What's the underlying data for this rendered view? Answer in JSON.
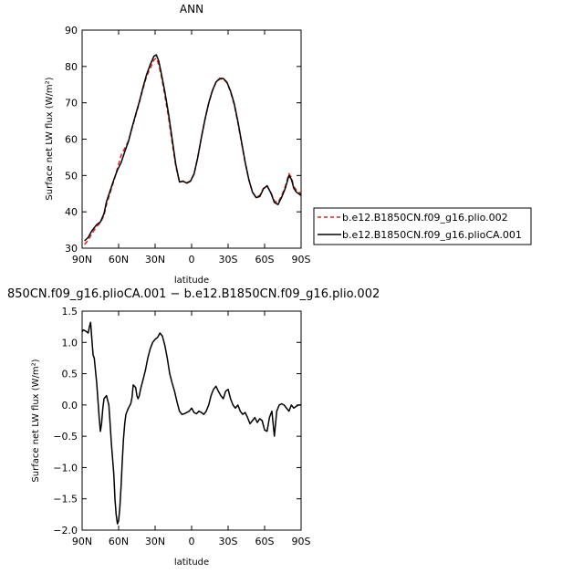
{
  "chart_data": [
    {
      "type": "line",
      "title": "ANN",
      "xlabel": "latitude",
      "ylabel": "Surface net LW flux (W/m²)",
      "xlim": [
        90,
        -90
      ],
      "ylim": [
        30,
        90
      ],
      "xtick_values": [
        90,
        60,
        30,
        0,
        -30,
        -60,
        -90
      ],
      "xtick_labels": [
        "90N",
        "60N",
        "30N",
        "0",
        "30S",
        "60S",
        "90S"
      ],
      "ytick_values": [
        30,
        40,
        50,
        60,
        70,
        80,
        90
      ],
      "ytick_labels": [
        "30",
        "40",
        "50",
        "60",
        "70",
        "80",
        "90"
      ],
      "grid": false,
      "legend_position": "right",
      "series": [
        {
          "name": "b.e12.B1850CN.f09_g16.plio.002",
          "color": "#dd2222",
          "dash": "dashed",
          "x": [
            88,
            85,
            82,
            78,
            75,
            72,
            70,
            67,
            64,
            61,
            58,
            55,
            52,
            49,
            46,
            43,
            40,
            37,
            34,
            31,
            29,
            27,
            25,
            22,
            19,
            16,
            13,
            10,
            7,
            4,
            1,
            -2,
            -5,
            -8,
            -11,
            -14,
            -17,
            -20,
            -23,
            -26,
            -29,
            -32,
            -35,
            -38,
            -41,
            -44,
            -47,
            -50,
            -53,
            -56,
            -59,
            -62,
            -65,
            -68,
            -71,
            -74,
            -77,
            -80,
            -82,
            -84,
            -86,
            -88,
            -90
          ],
          "y": [
            31.0,
            32.2,
            34.0,
            36.0,
            37.0,
            39.0,
            42.0,
            45.2,
            48.5,
            52.0,
            55.5,
            57.5,
            59.5,
            63.0,
            66.5,
            70.0,
            73.8,
            77.3,
            79.5,
            81.8,
            82.3,
            80.5,
            77.5,
            72.0,
            66.0,
            59.0,
            52.5,
            48.2,
            48.5,
            48.0,
            48.5,
            50.5,
            55.0,
            60.5,
            65.5,
            69.8,
            73.2,
            75.6,
            76.5,
            76.6,
            75.5,
            73.0,
            69.5,
            64.5,
            59.0,
            53.5,
            48.8,
            45.5,
            44.0,
            44.5,
            46.5,
            47.0,
            45.5,
            43.0,
            42.5,
            44.5,
            47.0,
            50.5,
            49.5,
            47.0,
            46.0,
            45.5,
            45.0
          ]
        },
        {
          "name": "b.e12.B1850CN.f09_g16.plioCA.001",
          "color": "#000000",
          "dash": "solid",
          "x": [
            88,
            85,
            82,
            78,
            75,
            72,
            70,
            67,
            64,
            61,
            58,
            55,
            52,
            49,
            46,
            43,
            40,
            37,
            34,
            31,
            29,
            27,
            25,
            22,
            19,
            16,
            13,
            10,
            7,
            4,
            1,
            -2,
            -5,
            -8,
            -11,
            -14,
            -17,
            -20,
            -23,
            -26,
            -29,
            -32,
            -35,
            -38,
            -41,
            -44,
            -47,
            -50,
            -53,
            -56,
            -59,
            -62,
            -65,
            -68,
            -71,
            -74,
            -77,
            -80,
            -82,
            -84,
            -86,
            -88,
            -90
          ],
          "y": [
            32.0,
            33.0,
            34.8,
            36.5,
            37.2,
            39.5,
            42.8,
            45.8,
            48.8,
            51.5,
            53.5,
            56.5,
            59.3,
            63.2,
            66.8,
            70.3,
            74.2,
            77.8,
            80.5,
            82.8,
            83.2,
            81.5,
            78.2,
            73.0,
            67.0,
            60.0,
            53.0,
            48.2,
            48.4,
            47.9,
            48.4,
            50.4,
            54.9,
            60.4,
            65.5,
            69.9,
            73.3,
            75.7,
            76.7,
            76.7,
            75.7,
            73.2,
            69.8,
            64.9,
            59.3,
            53.7,
            48.9,
            45.4,
            43.9,
            44.2,
            46.3,
            47.2,
            45.3,
            42.6,
            42.0,
            44.0,
            46.5,
            50.0,
            49.0,
            46.5,
            45.5,
            45.0,
            44.5
          ]
        }
      ]
    },
    {
      "type": "line",
      "title": "850CN.f09_g16.plioCA.001 − b.e12.B1850CN.f09_g16.plio.002",
      "xlabel": "latitude",
      "ylabel": "Surface net LW flux (W/m²)",
      "xlim": [
        90,
        -90
      ],
      "ylim": [
        -2.0,
        1.5
      ],
      "xtick_values": [
        90,
        60,
        30,
        0,
        -30,
        -60,
        -90
      ],
      "xtick_labels": [
        "90N",
        "60N",
        "30N",
        "0",
        "30S",
        "60S",
        "90S"
      ],
      "ytick_values": [
        -2.0,
        -1.5,
        -1.0,
        -0.5,
        0.0,
        0.5,
        1.0,
        1.5
      ],
      "ytick_labels": [
        "−2.0",
        "−1.5",
        "−1.0",
        "−0.5",
        "0.0",
        "0.5",
        "1.0",
        "1.5"
      ],
      "grid": false,
      "series": [
        {
          "color": "#000000",
          "dash": "solid",
          "x": [
            90,
            89,
            87,
            85,
            84,
            83,
            82,
            81,
            80,
            78,
            76,
            75,
            74,
            73,
            72,
            70,
            68,
            67,
            66,
            64,
            63,
            62,
            61,
            60,
            59,
            58,
            57,
            56,
            55,
            54,
            52,
            50,
            49,
            48,
            46,
            45,
            44,
            43,
            42,
            40,
            38,
            36,
            34,
            32,
            30,
            28,
            26,
            24,
            22,
            20,
            18,
            16,
            14,
            12,
            10,
            8,
            6,
            4,
            2,
            0,
            -2,
            -4,
            -6,
            -8,
            -10,
            -12,
            -14,
            -16,
            -18,
            -20,
            -22,
            -24,
            -26,
            -28,
            -30,
            -32,
            -34,
            -36,
            -38,
            -40,
            -42,
            -44,
            -46,
            -48,
            -50,
            -52,
            -54,
            -56,
            -58,
            -60,
            -62,
            -64,
            -66,
            -68,
            -70,
            -72,
            -74,
            -76,
            -78,
            -80,
            -82,
            -84,
            -86,
            -88,
            -90
          ],
          "y": [
            1.17,
            1.2,
            1.18,
            1.15,
            1.25,
            1.32,
            1.05,
            0.8,
            0.75,
            0.35,
            -0.2,
            -0.42,
            -0.3,
            -0.05,
            0.1,
            0.15,
            0.0,
            -0.3,
            -0.6,
            -1.1,
            -1.5,
            -1.75,
            -1.9,
            -1.85,
            -1.65,
            -1.3,
            -0.9,
            -0.55,
            -0.3,
            -0.15,
            -0.05,
            0.02,
            0.12,
            0.32,
            0.28,
            0.15,
            0.1,
            0.15,
            0.25,
            0.4,
            0.55,
            0.75,
            0.9,
            1.0,
            1.05,
            1.08,
            1.15,
            1.1,
            0.95,
            0.75,
            0.5,
            0.35,
            0.22,
            0.05,
            -0.1,
            -0.15,
            -0.14,
            -0.12,
            -0.1,
            -0.05,
            -0.12,
            -0.14,
            -0.1,
            -0.12,
            -0.15,
            -0.1,
            0.0,
            0.15,
            0.25,
            0.3,
            0.22,
            0.15,
            0.1,
            0.22,
            0.25,
            0.1,
            0.0,
            -0.05,
            0.0,
            -0.1,
            -0.15,
            -0.12,
            -0.2,
            -0.3,
            -0.25,
            -0.2,
            -0.28,
            -0.22,
            -0.25,
            -0.4,
            -0.42,
            -0.2,
            -0.1,
            -0.5,
            -0.1,
            0.0,
            0.02,
            0.0,
            -0.05,
            -0.1,
            0.0,
            -0.05,
            -0.02,
            0.0,
            0.0
          ]
        }
      ]
    }
  ]
}
